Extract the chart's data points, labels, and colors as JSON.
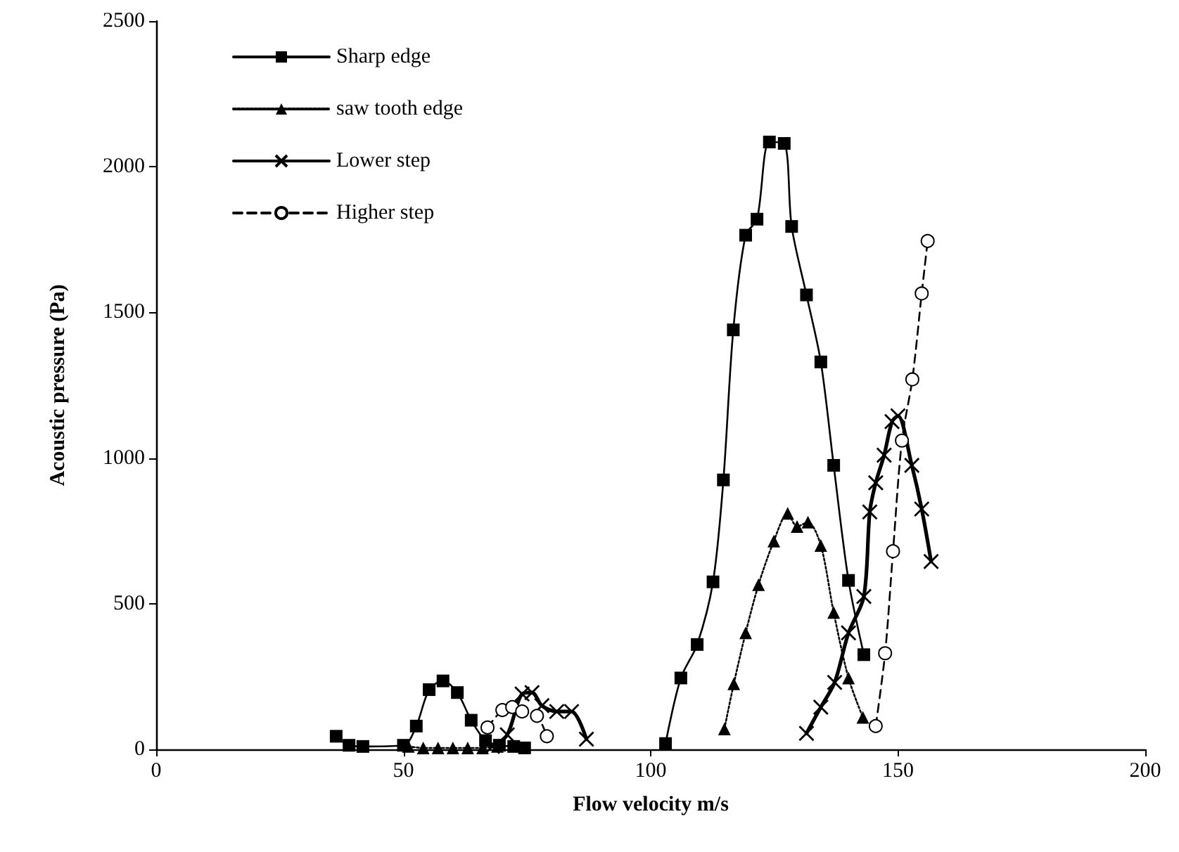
{
  "chart_data": {
    "type": "line",
    "xlabel": "Flow velocity m/s",
    "ylabel": "Acoustic pressure (Pa)",
    "xlim": [
      0,
      200
    ],
    "xticks": [
      0,
      50,
      100,
      150,
      200
    ],
    "ylim": [
      0,
      2500
    ],
    "yticks": [
      0,
      500,
      1000,
      1500,
      2000,
      2500
    ],
    "grid": false,
    "legend": "top left",
    "series": [
      {
        "name": "Sharp edge",
        "color": "#000000",
        "marker": "square",
        "line_style": "solid",
        "x": [
          36.4,
          39,
          41.8,
          50,
          52.6,
          55.2,
          58,
          60.9,
          63.7,
          66.6,
          69.4,
          72.3,
          74.5,
          null,
          103,
          106.1,
          109.4,
          112.6,
          114.7,
          116.7,
          119.2,
          121.5,
          124,
          127,
          128.5,
          131.5,
          134.4,
          137,
          140,
          143.1
        ],
        "values": [
          45,
          14,
          10,
          14,
          80,
          205,
          235,
          195,
          100,
          30,
          14,
          10,
          5,
          null,
          20,
          245,
          360,
          575,
          925,
          1440,
          1765,
          1820,
          2085,
          2080,
          1795,
          1560,
          1330,
          975,
          580,
          325
        ]
      },
      {
        "name": "saw tooth edge",
        "color": "#000000",
        "marker": "triangle",
        "line_style": "dotted",
        "x": [
          51,
          54,
          57,
          60,
          63,
          66,
          69,
          null,
          114.9,
          116.8,
          119.2,
          121.8,
          124.9,
          127.7,
          129.6,
          131.8,
          134.4,
          137,
          140,
          142.9
        ],
        "values": [
          10,
          5,
          5,
          5,
          5,
          5,
          10,
          null,
          70,
          225,
          400,
          565,
          715,
          810,
          765,
          780,
          700,
          470,
          245,
          110
        ]
      },
      {
        "name": "Lower step",
        "color": "#000000",
        "marker": "cross",
        "line_style": "solid",
        "x": [
          68,
          71,
          74,
          76,
          78,
          81,
          84,
          87,
          null,
          131.5,
          134.4,
          137.2,
          140,
          143.1,
          144.3,
          145.5,
          147.2,
          148.8,
          150,
          152.8,
          154.8,
          156.7
        ],
        "values": [
          10,
          50,
          190,
          195,
          150,
          130,
          130,
          35,
          null,
          55,
          145,
          230,
          400,
          525,
          815,
          915,
          1010,
          1125,
          1145,
          975,
          825,
          645
        ]
      },
      {
        "name": "Higher step",
        "color": "#000000",
        "marker": "circle",
        "line_style": "dashed",
        "x": [
          67,
          70,
          72,
          74,
          77,
          79,
          null,
          145.5,
          147.4,
          149,
          150.8,
          152.9,
          154.8,
          156
        ],
        "values": [
          75,
          135,
          145,
          130,
          115,
          45,
          null,
          80,
          330,
          680,
          1060,
          1270,
          1565,
          1745
        ]
      }
    ]
  }
}
